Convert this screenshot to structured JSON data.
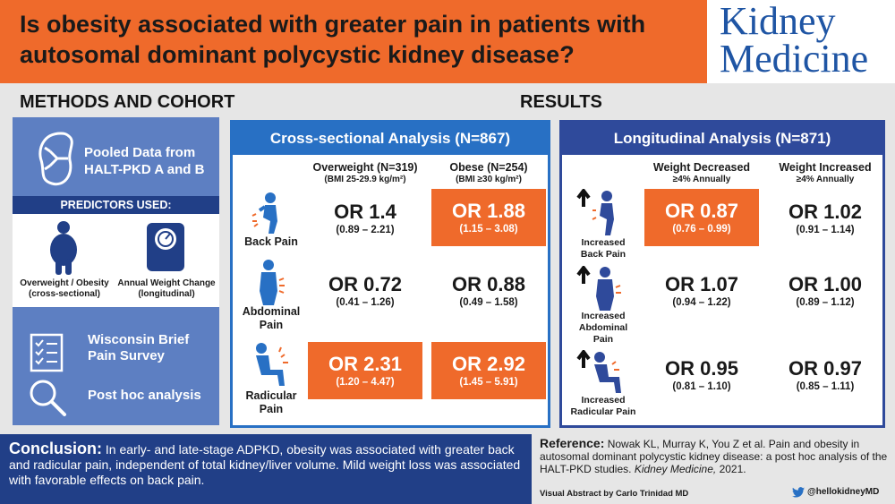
{
  "header": {
    "title": "Is obesity associated with greater pain in patients with autosomal dominant polycystic kidney disease?",
    "logo_line1": "Kidney",
    "logo_line2": "Medicine"
  },
  "methods": {
    "title": "METHODS AND COHORT",
    "pooled": "Pooled Data from HALT-PKD A and B",
    "predictors_title": "PREDICTORS USED:",
    "predictor1_line1": "Overweight / Obesity",
    "predictor1_line2": "(cross-sectional)",
    "predictor2_line1": "Annual Weight Change",
    "predictor2_line2": "(longitudinal)",
    "survey": "Wisconsin Brief Pain Survey",
    "posthoc": "Post hoc analysis"
  },
  "results": {
    "title": "RESULTS",
    "cross": {
      "title": "Cross-sectional Analysis (N=867)",
      "col1_title": "Overweight (N=319)",
      "col1_sub": "(BMI 25-29.9 kg/m²)",
      "col2_title": "Obese (N=254)",
      "col2_sub": "(BMI ≥30 kg/m²)",
      "rows": [
        {
          "label": "Back Pain",
          "c1_or": "OR 1.4",
          "c1_ci": "(0.89 – 2.21)",
          "c2_or": "OR 1.88",
          "c2_ci": "(1.15 – 3.08)"
        },
        {
          "label1": "Abdominal",
          "label2": "Pain",
          "c1_or": "OR 0.72",
          "c1_ci": "(0.41 – 1.26)",
          "c2_or": "OR 0.88",
          "c2_ci": "(0.49 – 1.58)"
        },
        {
          "label1": "Radicular",
          "label2": "Pain",
          "c1_or": "OR 2.31",
          "c1_ci": "(1.20 – 4.47)",
          "c2_or": "OR 2.92",
          "c2_ci": "(1.45 – 5.91)"
        }
      ]
    },
    "long": {
      "title": "Longitudinal Analysis (N=871)",
      "col1_title": "Weight Decreased",
      "col1_sub": "≥4% Annually",
      "col2_title": "Weight Increased",
      "col2_sub": "≥4% Annually",
      "rows": [
        {
          "label1": "Increased",
          "label2": "Back Pain",
          "c1_or": "OR 0.87",
          "c1_ci": "(0.76 – 0.99)",
          "c2_or": "OR 1.02",
          "c2_ci": "(0.91 – 1.14)"
        },
        {
          "label1": "Increased",
          "label2": "Abdominal",
          "label3": "Pain",
          "c1_or": "OR 1.07",
          "c1_ci": "(0.94 – 1.22)",
          "c2_or": "OR 1.00",
          "c2_ci": "(0.89 – 1.12)"
        },
        {
          "label1": "Increased",
          "label2": "Radicular Pain",
          "c1_or": "OR 0.95",
          "c1_ci": "(0.81 – 1.10)",
          "c2_or": "OR 0.97",
          "c2_ci": "(0.85 – 1.11)"
        }
      ]
    }
  },
  "conclusion": {
    "label": "Conclusion:",
    "text": "In early- and late-stage ADPKD, obesity was associated with greater back and radicular pain, independent of total kidney/liver volume. Mild weight loss was associated with favorable effects on back pain."
  },
  "reference": {
    "label": "Reference:",
    "text": "Nowak KL, Murray K, You Z et al. Pain and obesity in autosomal dominant polycystic kidney disease: a post hoc analysis of the HALT-PKD studies.",
    "journal": "Kidney Medicine,",
    "year": "2021."
  },
  "credit": "Visual Abstract by Carlo Trinidad MD",
  "twitter_handle": "@hellokidneyMD",
  "colors": {
    "orange": "#ef6a2b",
    "navy": "#213f87",
    "blue": "#2870c4",
    "slate": "#5d7fc2",
    "brand": "#1f55a4"
  }
}
